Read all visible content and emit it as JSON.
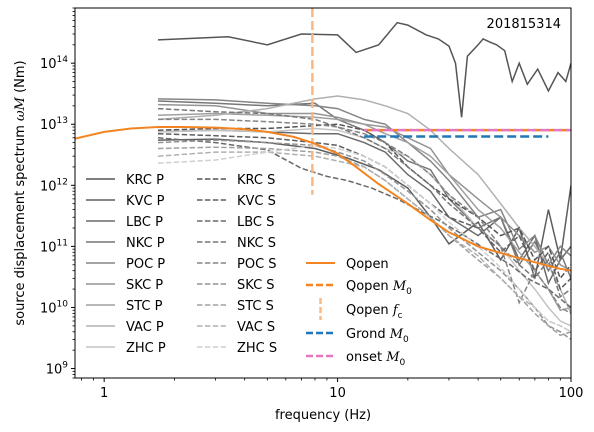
{
  "chart_data": {
    "type": "line",
    "annotation": "201815314",
    "xlabel": "frequency (Hz)",
    "ylabel_prefix": "source displacement spectrum ",
    "ylabel_math": "ωM",
    "ylabel_suffix": " (Nm)",
    "x_scale": "log",
    "y_scale": "log",
    "xlim": [
      0.75,
      100
    ],
    "ylim": [
      700000000.0,
      800000000000000.0
    ],
    "x_ticks": [
      {
        "value": 1,
        "label": "1"
      },
      {
        "value": 10,
        "label": "10"
      },
      {
        "value": 100,
        "label": "100"
      }
    ],
    "y_ticks": [
      {
        "value": 1000000000.0,
        "base": "10",
        "exp": "9"
      },
      {
        "value": 10000000000.0,
        "base": "10",
        "exp": "10"
      },
      {
        "value": 100000000000.0,
        "base": "10",
        "exp": "11"
      },
      {
        "value": 1000000000000.0,
        "base": "10",
        "exp": "12"
      },
      {
        "value": 10000000000000.0,
        "base": "10",
        "exp": "13"
      },
      {
        "value": 100000000000000.0,
        "base": "10",
        "exp": "14"
      }
    ],
    "grid": false,
    "legend_placement": "lower-left and lower-right",
    "station_series": [
      {
        "name": "KRC P",
        "color": "#555555",
        "dash": "solid",
        "x": [
          1.7,
          3.4,
          5,
          7,
          10,
          12,
          15,
          18,
          20,
          24,
          27,
          30,
          32,
          34,
          36,
          40,
          42,
          45,
          48,
          52,
          56,
          60,
          65,
          72,
          80,
          88,
          95,
          100
        ],
        "y": [
          240000000000000.0,
          270000000000000.0,
          200000000000000.0,
          300000000000000.0,
          290000000000000.0,
          150000000000000.0,
          200000000000000.0,
          460000000000000.0,
          420000000000000.0,
          290000000000000.0,
          250000000000000.0,
          190000000000000.0,
          100000000000000.0,
          13000000000000.0,
          130000000000000.0,
          200000000000000.0,
          250000000000000.0,
          220000000000000.0,
          200000000000000.0,
          160000000000000.0,
          50000000000000.0,
          100000000000000.0,
          45000000000000.0,
          80000000000000.0,
          35000000000000.0,
          70000000000000.0,
          50000000000000.0,
          100000000000000.0
        ]
      },
      {
        "name": "KVC P",
        "color": "#5e5e5e",
        "dash": "solid",
        "x": [
          1.7,
          3,
          5,
          8,
          11,
          15,
          20,
          25,
          30,
          40,
          50,
          60,
          70,
          80,
          90,
          100
        ],
        "y": [
          5500000000000.0,
          5700000000000.0,
          5000000000000.0,
          4000000000000.0,
          2800000000000.0,
          1800000000000.0,
          900000000000.0,
          300000000000.0,
          110000000000.0,
          250000000000.0,
          60000000000.0,
          200000000000.0,
          30000000000.0,
          400000000000.0,
          60000000000.0,
          1000000000000.0
        ]
      },
      {
        "name": "LBC P",
        "color": "#6a6a6a",
        "dash": "solid",
        "x": [
          1.7,
          3,
          5,
          8,
          10,
          13,
          16,
          20,
          25,
          30,
          40,
          50,
          60,
          70,
          80,
          90,
          100
        ],
        "y": [
          7500000000000.0,
          8000000000000.0,
          7500000000000.0,
          7000000000000.0,
          7000000000000.0,
          5000000000000.0,
          3500000000000.0,
          1500000000000.0,
          800000000000.0,
          300000000000.0,
          150000000000.0,
          300000000000.0,
          60000000000.0,
          150000000000.0,
          25000000000.0,
          60000000000.0,
          100000000000.0
        ]
      },
      {
        "name": "NKC P",
        "color": "#777777",
        "dash": "solid",
        "x": [
          1.7,
          3,
          5,
          8,
          10,
          13,
          16,
          20,
          25,
          30,
          40,
          50,
          60,
          70,
          80,
          90,
          100
        ],
        "y": [
          24000000000000.0,
          22000000000000.0,
          20000000000000.0,
          22000000000000.0,
          12000000000000.0,
          8000000000000.0,
          5000000000000.0,
          2500000000000.0,
          1800000000000.0,
          600000000000.0,
          200000000000.0,
          300000000000.0,
          50000000000.0,
          120000000000.0,
          40000000000.0,
          80000000000.0,
          30000000000.0
        ]
      },
      {
        "name": "POC P",
        "color": "#858585",
        "dash": "solid",
        "x": [
          1.7,
          3,
          5,
          8,
          10,
          13,
          16,
          20,
          25,
          30,
          40,
          50,
          60,
          70,
          80,
          90,
          100
        ],
        "y": [
          26000000000000.0,
          25000000000000.0,
          22000000000000.0,
          20000000000000.0,
          18000000000000.0,
          12000000000000.0,
          10000000000000.0,
          5000000000000.0,
          2500000000000.0,
          1200000000000.0,
          300000000000.0,
          400000000000.0,
          90000000000.0,
          150000000000.0,
          50000000000.0,
          100000000000.0,
          70000000000.0
        ]
      },
      {
        "name": "SKC P",
        "color": "#939393",
        "dash": "solid",
        "x": [
          1.7,
          3,
          5,
          8,
          10,
          13,
          16,
          20,
          25,
          30,
          40,
          50,
          60,
          70,
          80,
          90,
          100
        ],
        "y": [
          21000000000000.0,
          20000000000000.0,
          15000000000000.0,
          15000000000000.0,
          13000000000000.0,
          10000000000000.0,
          9000000000000.0,
          6000000000000.0,
          4000000000000.0,
          1500000000000.0,
          600000000000.0,
          300000000000.0,
          150000000000.0,
          80000000000.0,
          100000000000.0,
          50000000000.0,
          40000000000.0
        ]
      },
      {
        "name": "STC P",
        "color": "#a0a0a0",
        "dash": "solid",
        "x": [
          1.7,
          3,
          5,
          8,
          10,
          13,
          16,
          20,
          25,
          30,
          40,
          50,
          60,
          70,
          80,
          90,
          100
        ],
        "y": [
          14000000000000.0,
          15000000000000.0,
          14000000000000.0,
          13000000000000.0,
          12000000000000.0,
          10000000000000.0,
          7000000000000.0,
          5000000000000.0,
          3000000000000.0,
          1500000000000.0,
          400000000000.0,
          200000000000.0,
          80000000000.0,
          40000000000.0,
          20000000000.0,
          9000000000.0,
          10000000000.0
        ]
      },
      {
        "name": "VAC P",
        "color": "#b0b0b0",
        "dash": "solid",
        "x": [
          1.7,
          3,
          5,
          8,
          10,
          13,
          16,
          20,
          25,
          30,
          40,
          50,
          60,
          70,
          80,
          90,
          100
        ],
        "y": [
          12000000000000.0,
          14000000000000.0,
          18000000000000.0,
          26000000000000.0,
          29000000000000.0,
          25000000000000.0,
          20000000000000.0,
          15000000000000.0,
          8000000000000.0,
          4000000000000.0,
          1500000000000.0,
          500000000000.0,
          200000000000.0,
          100000000000.0,
          50000000000.0,
          20000000000.0,
          8000000000.0
        ]
      },
      {
        "name": "ZHC P",
        "color": "#c4c4c4",
        "dash": "solid",
        "x": [
          1.7,
          3,
          5,
          8,
          10,
          13,
          16,
          20,
          25,
          30,
          40,
          50,
          60,
          70,
          80,
          90,
          100
        ],
        "y": [
          7500000000000.0,
          8000000000000.0,
          7500000000000.0,
          8500000000000.0,
          8000000000000.0,
          6000000000000.0,
          4000000000000.0,
          3000000000000.0,
          1500000000000.0,
          700000000000.0,
          200000000000.0,
          100000000000.0,
          40000000000.0,
          20000000000.0,
          10000000000.0,
          6000000000.0,
          5000000000.0
        ]
      },
      {
        "name": "KRC S",
        "color": "#555555",
        "dash": "dashed",
        "x": [
          1.7,
          3,
          5,
          8,
          10,
          13,
          16,
          20,
          25,
          30,
          40,
          50,
          60,
          70,
          80,
          90,
          100
        ],
        "y": [
          8000000000000.0,
          8500000000000.0,
          8500000000000.0,
          9500000000000.0,
          10000000000000.0,
          8000000000000.0,
          5000000000000.0,
          2000000000000.0,
          1000000000000.0,
          600000000000.0,
          300000000000.0,
          150000000000.0,
          200000000000.0,
          60000000000.0,
          100000000000.0,
          30000000000.0,
          50000000000.0
        ]
      },
      {
        "name": "KVC S",
        "color": "#5e5e5e",
        "dash": "dashed",
        "x": [
          1.7,
          3,
          5,
          8,
          10,
          13,
          16,
          20,
          25,
          30,
          40,
          50,
          60,
          70,
          80,
          90,
          100
        ],
        "y": [
          7000000000000.0,
          6500000000000.0,
          6000000000000.0,
          5000000000000.0,
          4500000000000.0,
          3000000000000.0,
          2000000000000.0,
          1000000000000.0,
          500000000000.0,
          300000000000.0,
          200000000000.0,
          80000000000.0,
          150000000000.0,
          40000000000.0,
          80000000000.0,
          20000000000.0,
          30000000000.0
        ]
      },
      {
        "name": "LBC S",
        "color": "#6a6a6a",
        "dash": "dashed",
        "x": [
          1.7,
          3,
          5,
          7,
          9,
          11,
          14,
          18,
          22,
          28,
          35,
          45,
          55,
          65,
          80,
          100
        ],
        "y": [
          6000000000000.0,
          5000000000000.0,
          3800000000000.0,
          1900000000000.0,
          1400000000000.0,
          1200000000000.0,
          900000000000.0,
          600000000000.0,
          400000000000.0,
          250000000000.0,
          150000000000.0,
          80000000000.0,
          50000000000.0,
          30000000000.0,
          20000000000.0,
          10000000000.0
        ]
      },
      {
        "name": "NKC S",
        "color": "#777777",
        "dash": "dashed",
        "x": [
          1.7,
          3,
          5,
          8,
          10,
          13,
          16,
          20,
          25,
          30,
          40,
          50,
          60,
          70,
          80,
          90,
          100
        ],
        "y": [
          18000000000000.0,
          16000000000000.0,
          15000000000000.0,
          12000000000000.0,
          9000000000000.0,
          6000000000000.0,
          4000000000000.0,
          2000000000000.0,
          1000000000000.0,
          500000000000.0,
          200000000000.0,
          100000000000.0,
          50000000000.0,
          30000000000.0,
          60000000000.0,
          15000000000.0,
          20000000000.0
        ]
      },
      {
        "name": "POC S",
        "color": "#858585",
        "dash": "dashed",
        "x": [
          1.7,
          3,
          5,
          8,
          10,
          13,
          16,
          20,
          25,
          30,
          40,
          50,
          60,
          70,
          80,
          90,
          100
        ],
        "y": [
          12000000000000.0,
          12000000000000.0,
          11000000000000.0,
          10000000000000.0,
          9000000000000.0,
          7000000000000.0,
          5000000000000.0,
          3000000000000.0,
          1500000000000.0,
          700000000000.0,
          300000000000.0,
          100000000000.0,
          12000000000.0,
          40000000000.0,
          20000000000.0,
          10000000000.0,
          8000000000.0
        ]
      },
      {
        "name": "SKC S",
        "color": "#939393",
        "dash": "dashed",
        "x": [
          1.7,
          3,
          5,
          8,
          10,
          13,
          16,
          20,
          25,
          30,
          40,
          50,
          60,
          70,
          80,
          90,
          100
        ],
        "y": [
          5000000000000.0,
          5500000000000.0,
          5000000000000.0,
          4500000000000.0,
          3500000000000.0,
          2500000000000.0,
          1500000000000.0,
          800000000000.0,
          400000000000.0,
          200000000000.0,
          80000000000.0,
          40000000000.0,
          20000000000.0,
          10000000000.0,
          5000000000.0,
          4000000000.0,
          3000000000.0
        ]
      },
      {
        "name": "STC S",
        "color": "#a0a0a0",
        "dash": "dashed",
        "x": [
          1.7,
          3,
          5,
          8,
          10,
          13,
          16,
          20,
          25,
          30,
          40,
          50,
          60,
          70,
          80,
          90,
          100
        ],
        "y": [
          4000000000000.0,
          4200000000000.0,
          4000000000000.0,
          3500000000000.0,
          3000000000000.0,
          2000000000000.0,
          1200000000000.0,
          600000000000.0,
          300000000000.0,
          150000000000.0,
          60000000000.0,
          30000000000.0,
          15000000000.0,
          8000000000.0,
          5000000000.0,
          3500000000.0,
          4000000000.0
        ]
      },
      {
        "name": "VAC S",
        "color": "#b0b0b0",
        "dash": "dashed",
        "x": [
          1.7,
          3,
          5,
          8,
          10,
          13,
          16,
          20,
          25,
          30,
          40,
          50,
          60,
          70,
          80,
          90,
          100
        ],
        "y": [
          3000000000000.0,
          3500000000000.0,
          3500000000000.0,
          3000000000000.0,
          2500000000000.0,
          2000000000000.0,
          1200000000000.0,
          600000000000.0,
          300000000000.0,
          150000000000.0,
          70000000000.0,
          30000000000.0,
          15000000000.0,
          10000000000.0,
          6000000000.0,
          5000000000.0,
          4000000000.0
        ]
      },
      {
        "name": "ZHC S",
        "color": "#cfcfcf",
        "dash": "dashed",
        "x": [
          1.7,
          3,
          5,
          8,
          10,
          13,
          16,
          20,
          25,
          30,
          40,
          50,
          60,
          70,
          80,
          90,
          100
        ],
        "y": [
          2300000000000.0,
          2600000000000.0,
          3500000000000.0,
          4500000000000.0,
          4000000000000.0,
          3000000000000.0,
          2000000000000.0,
          1000000000000.0,
          500000000000.0,
          250000000000.0,
          100000000000.0,
          45000000000.0,
          20000000000.0,
          10000000000.0,
          6000000000.0,
          5000000000.0,
          4000000000.0
        ]
      }
    ],
    "qopen": {
      "name": "Qopen",
      "color": "#f28522",
      "x": [
        0.75,
        1,
        1.3,
        1.7,
        2.2,
        3,
        4,
        5,
        6.5,
        8,
        10,
        12,
        15,
        20,
        25,
        30,
        40,
        50,
        60,
        70,
        80,
        90,
        100
      ],
      "y": [
        5800000000000.0,
        7500000000000.0,
        8500000000000.0,
        9000000000000.0,
        9000000000000.0,
        8800000000000.0,
        8300000000000.0,
        7500000000000.0,
        6200000000000.0,
        4800000000000.0,
        3300000000000.0,
        2000000000000.0,
        1050000000000.0,
        500000000000.0,
        270000000000.0,
        170000000000.0,
        100000000000.0,
        78000000000.0,
        64000000000.0,
        55000000000.0,
        48000000000.0,
        43000000000.0,
        40000000000.0
      ]
    },
    "qopen_m0": {
      "name": "Qopen M0",
      "name_prefix": "Qopen ",
      "name_math": "M",
      "name_sub": "0",
      "color": "#f28522",
      "value": 8000000000000.0,
      "x_range": [
        13,
        100
      ]
    },
    "qopen_fc": {
      "name": "Qopen fc",
      "name_prefix": "Qopen ",
      "name_math": "f",
      "name_sub": "c",
      "color": "#f9b882",
      "value": 7.8,
      "y_range": [
        700000000000.0,
        800000000000000.0
      ]
    },
    "grond_m0": {
      "name": "Grond M0",
      "name_prefix": "Grond ",
      "name_math": "M",
      "name_sub": "0",
      "color": "#1f77b4",
      "value": 6300000000000.0,
      "x_range": [
        13,
        80
      ]
    },
    "onset_m0": {
      "name": "onset M0",
      "name_prefix": "onset ",
      "name_math": "M",
      "name_sub": "0",
      "color": "#e377c2",
      "value": 8000000000000.0,
      "x_range": [
        13,
        100
      ]
    }
  }
}
